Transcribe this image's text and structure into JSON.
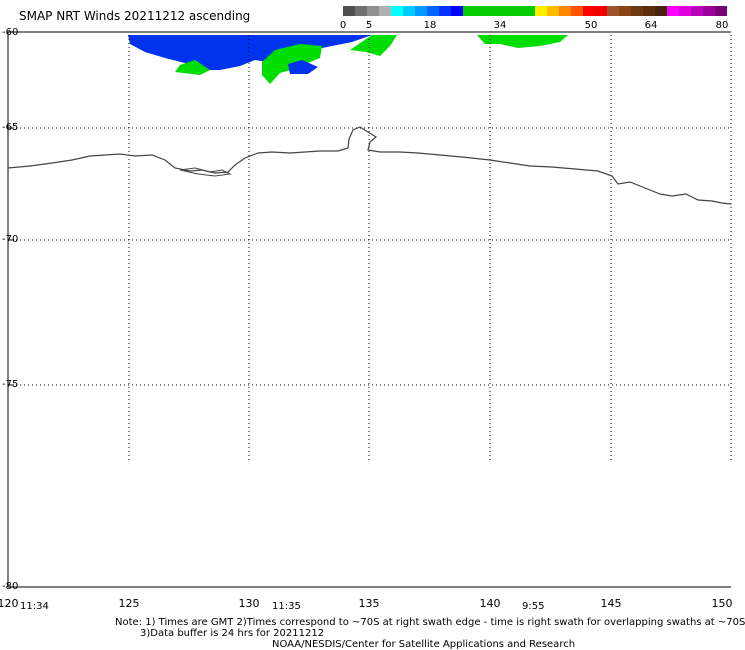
{
  "title": "SMAP NRT Winds 20211212 ascending",
  "colorbar": {
    "labels": [
      "0",
      "5",
      "18",
      "34",
      "50",
      "64",
      "80"
    ],
    "segments": [
      {
        "color": "#505050"
      },
      {
        "color": "#707070"
      },
      {
        "color": "#909090"
      },
      {
        "color": "#b0b0b0"
      },
      {
        "color": "#00ffff"
      },
      {
        "color": "#00ccff"
      },
      {
        "color": "#0099ff"
      },
      {
        "color": "#0066ff"
      },
      {
        "color": "#0033ff"
      },
      {
        "color": "#0000ff"
      },
      {
        "color": "#00cc00"
      },
      {
        "color": "#00cc00"
      },
      {
        "color": "#00cc00"
      },
      {
        "color": "#00cc00"
      },
      {
        "color": "#00cc00"
      },
      {
        "color": "#00cc00"
      },
      {
        "color": "#ffee00"
      },
      {
        "color": "#ffbb00"
      },
      {
        "color": "#ff8800"
      },
      {
        "color": "#ff5500"
      },
      {
        "color": "#ff0000"
      },
      {
        "color": "#ee0000"
      },
      {
        "color": "#a0522d"
      },
      {
        "color": "#8b4513"
      },
      {
        "color": "#6b3a10"
      },
      {
        "color": "#5a2d0c"
      },
      {
        "color": "#4a240a"
      },
      {
        "color": "#ff00ff"
      },
      {
        "color": "#dd00dd"
      },
      {
        "color": "#bb00bb"
      },
      {
        "color": "#990099"
      },
      {
        "color": "#770077"
      }
    ]
  },
  "axes": {
    "lat_labels": [
      "-60",
      "-65",
      "-70",
      "-75",
      "-80"
    ],
    "lon_labels": [
      "120",
      "125",
      "130",
      "135",
      "140",
      "145",
      "150"
    ]
  },
  "times": [
    "11:34",
    "11:35",
    "9:55"
  ],
  "notes": {
    "line1": "Note: 1) Times are GMT 2)Times correspond to ~70S at right swath edge - time is right swath for overlapping swaths at ~70S",
    "line2": "3)Data buffer is 24 hrs for 20211212",
    "line3": "NOAA/NESDIS/Center for Satellite Applications and Research"
  }
}
